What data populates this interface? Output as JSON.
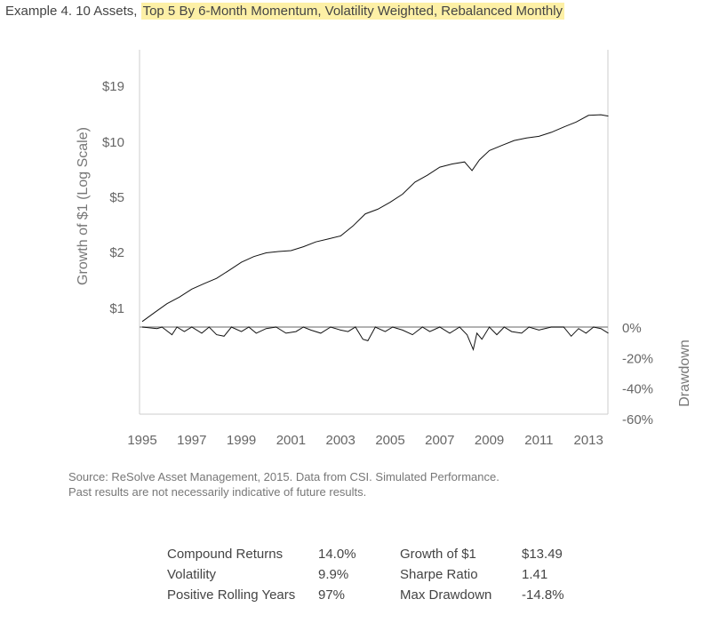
{
  "title": {
    "prefix": "Example 4. 10 Assets, ",
    "highlight": "Top 5 By 6-Month Momentum, Volatility Weighted, Rebalanced Monthly",
    "highlight_color": "#fdf0a6"
  },
  "chart_data": {
    "type": "line",
    "growth_panel": {
      "ylabel": "Growth of $1 (Log Scale)",
      "scale": "log",
      "yticks": [
        "$1",
        "$2",
        "$5",
        "$10",
        "$19"
      ],
      "series": {
        "x": [
          1995.0,
          1995.5,
          1996.0,
          1996.5,
          1997.0,
          1997.5,
          1998.0,
          1998.5,
          1999.0,
          1999.5,
          2000.0,
          2000.5,
          2001.0,
          2001.5,
          2002.0,
          2002.5,
          2003.0,
          2003.5,
          2004.0,
          2004.5,
          2005.0,
          2005.5,
          2006.0,
          2006.5,
          2007.0,
          2007.5,
          2008.0,
          2008.3,
          2008.6,
          2009.0,
          2009.5,
          2010.0,
          2010.5,
          2011.0,
          2011.5,
          2012.0,
          2012.5,
          2013.0,
          2013.5,
          2013.8
        ],
        "y": [
          0.85,
          0.95,
          1.06,
          1.15,
          1.27,
          1.36,
          1.45,
          1.6,
          1.77,
          1.9,
          1.99,
          2.03,
          2.06,
          2.2,
          2.38,
          2.5,
          2.63,
          3.1,
          3.8,
          4.1,
          4.6,
          5.2,
          6.05,
          6.6,
          7.3,
          7.6,
          7.8,
          7.0,
          8.0,
          9.0,
          9.6,
          10.2,
          10.5,
          10.7,
          11.2,
          11.9,
          12.6,
          13.6,
          13.7,
          13.49
        ]
      }
    },
    "drawdown_panel": {
      "ylabel": "Drawdown",
      "yticks": [
        "0%",
        "-20%",
        "-40%",
        "-60%"
      ],
      "ylim": [
        -60,
        0
      ],
      "series": {
        "x": [
          1995.0,
          1995.6,
          1995.8,
          1996.2,
          1996.4,
          1996.7,
          1997.0,
          1997.4,
          1997.7,
          1998.0,
          1998.3,
          1998.6,
          1999.0,
          1999.3,
          1999.6,
          2000.0,
          2000.4,
          2000.8,
          2001.2,
          2001.5,
          2001.8,
          2002.2,
          2002.6,
          2003.0,
          2003.3,
          2003.6,
          2003.9,
          2004.1,
          2004.4,
          2004.8,
          2005.1,
          2005.5,
          2005.9,
          2006.3,
          2006.6,
          2007.0,
          2007.4,
          2007.8,
          2008.1,
          2008.35,
          2008.5,
          2008.7,
          2009.0,
          2009.3,
          2009.6,
          2009.9,
          2010.3,
          2010.6,
          2011.0,
          2011.5,
          2012.0,
          2012.3,
          2012.6,
          2012.9,
          2013.2,
          2013.5,
          2013.8
        ],
        "y": [
          0,
          -1,
          0,
          -5,
          0,
          -3,
          0,
          -4,
          0,
          -5,
          -6,
          0,
          -3,
          0,
          -4,
          -1,
          0,
          -4,
          -3,
          0,
          -2,
          -4,
          0,
          -2,
          -3,
          0,
          -8,
          -9,
          0,
          -3,
          0,
          -2,
          -5,
          0,
          -3,
          0,
          -4,
          0,
          -5,
          -14.8,
          -4,
          -8,
          0,
          -5,
          0,
          -3,
          -4,
          0,
          -2,
          0,
          0,
          -6,
          -1,
          -4,
          0,
          -1,
          -4
        ]
      },
      "xticks": [
        "1995",
        "1997",
        "1999",
        "2001",
        "2003",
        "2005",
        "2007",
        "2009",
        "2011",
        "2013"
      ]
    }
  },
  "source": {
    "line1": "Source: ReSolve Asset Management, 2015. Data from CSI. Simulated Performance.",
    "line2": "Past results are not necessarily indicative of future results."
  },
  "stats": [
    {
      "label1": "Compound Returns",
      "value1": "14.0%",
      "label2": "Growth of $1",
      "value2": "$13.49"
    },
    {
      "label1": "Volatility",
      "value1": "9.9%",
      "label2": "Sharpe Ratio",
      "value2": "1.41"
    },
    {
      "label1": "Positive Rolling Years",
      "value1": "97%",
      "label2": "Max Drawdown",
      "value2": "-14.8%"
    }
  ]
}
